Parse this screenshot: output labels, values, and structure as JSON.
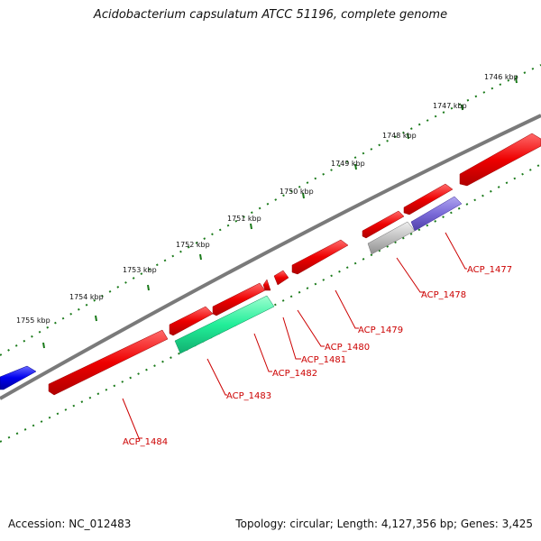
{
  "title": "Acidobacterium capsulatum ATCC 51196, complete genome",
  "footer": {
    "accession": "Accession: NC_012483",
    "summary": "Topology: circular; Length: 4,127,356 bp; Genes: 3,425"
  },
  "colors": {
    "backbone": "#7a7a7a",
    "tick": "#1a7a1a",
    "label_line": "#cc0000",
    "label_text": "#cc0000",
    "gene_red": "#ee0000",
    "gene_green": "#22ee99",
    "gene_gray": "#c0c0c0",
    "gene_purple": "#7a6ad8",
    "gene_blue": "#0000ee"
  },
  "ticks": [
    "1746 kbp",
    "1747 kbp",
    "1748 kbp",
    "1749 kbp",
    "1750 kbp",
    "1751 kbp",
    "1752 kbp",
    "1753 kbp",
    "1754 kbp",
    "1755 kbp"
  ],
  "genes": [
    {
      "label": "ACP_1477",
      "color": "purple"
    },
    {
      "label": "ACP_1478",
      "color": "gray"
    },
    {
      "label": "ACP_1479",
      "color": "red"
    },
    {
      "label": "ACP_1480",
      "color": "red"
    },
    {
      "label": "ACP_1481",
      "color": "red"
    },
    {
      "label": "ACP_1482",
      "color": "red"
    },
    {
      "label": "ACP_1483",
      "color": "green"
    },
    {
      "label": "ACP_1484",
      "color": "red"
    }
  ]
}
